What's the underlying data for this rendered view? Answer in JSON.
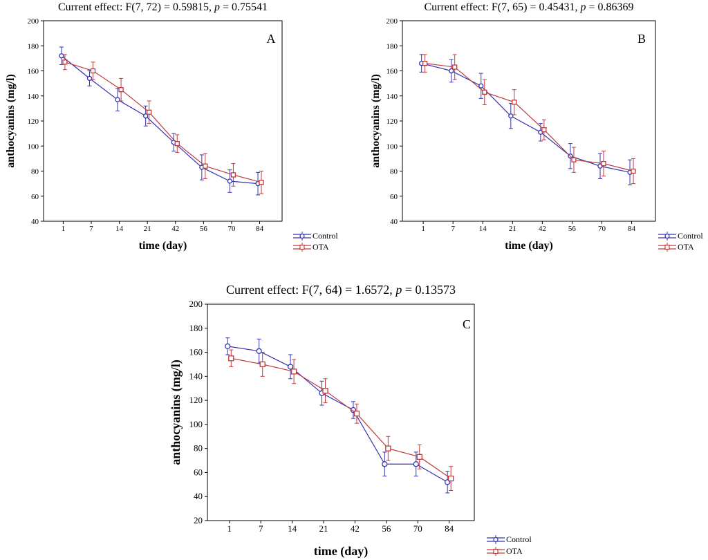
{
  "chart_data": [
    {
      "type": "line",
      "panel": "A",
      "title_prefix": "Current effect: F(7, 72) = 0.59815, ",
      "title_p": "p",
      "title_suffix": " = 0.75541",
      "xlabel": "time (day)",
      "ylabel": "anthocyanins (mg/l)",
      "categories": [
        "1",
        "7",
        "14",
        "21",
        "42",
        "56",
        "70",
        "84"
      ],
      "ylim": [
        40,
        200
      ],
      "yticks": [
        40,
        60,
        80,
        100,
        120,
        140,
        160,
        180,
        200
      ],
      "legend_position": "bottom-right",
      "series": [
        {
          "name": "Control",
          "color": "#3232b4",
          "marker": "circle",
          "values": [
            172,
            154,
            137,
            124,
            103,
            83,
            72,
            70
          ],
          "errors": [
            7,
            6,
            9,
            8,
            7,
            10,
            9,
            9
          ]
        },
        {
          "name": "OTA",
          "color": "#c0393b",
          "marker": "square",
          "values": [
            167,
            160,
            145,
            127,
            102,
            84,
            77,
            71
          ],
          "errors": [
            6,
            7,
            9,
            9,
            7,
            10,
            9,
            9
          ]
        }
      ]
    },
    {
      "type": "line",
      "panel": "B",
      "title_prefix": "Current effect: F(7, 65) = 0.45431, ",
      "title_p": "p",
      "title_suffix": " = 0.86369",
      "xlabel": "time (day)",
      "ylabel": "anthocyanins (mg/l)",
      "categories": [
        "1",
        "7",
        "14",
        "21",
        "42",
        "56",
        "70",
        "84"
      ],
      "ylim": [
        40,
        200
      ],
      "yticks": [
        40,
        60,
        80,
        100,
        120,
        140,
        160,
        180,
        200
      ],
      "legend_position": "bottom-right",
      "series": [
        {
          "name": "Control",
          "color": "#3232b4",
          "marker": "circle",
          "values": [
            166,
            160,
            148,
            124,
            111,
            92,
            84,
            79
          ],
          "errors": [
            7,
            9,
            10,
            10,
            7,
            10,
            10,
            10
          ]
        },
        {
          "name": "OTA",
          "color": "#c0393b",
          "marker": "square",
          "values": [
            166,
            163,
            143,
            135,
            113,
            89,
            86,
            80
          ],
          "errors": [
            7,
            10,
            10,
            10,
            8,
            10,
            10,
            10
          ]
        }
      ]
    },
    {
      "type": "line",
      "panel": "C",
      "title_prefix": "Current effect: F(7, 64) = 1.6572, ",
      "title_p": "p",
      "title_suffix": " = 0.13573",
      "xlabel": "time (day)",
      "ylabel": "anthocyanins (mg/l)",
      "categories": [
        "1",
        "7",
        "14",
        "21",
        "42",
        "56",
        "70",
        "84"
      ],
      "ylim": [
        20,
        200
      ],
      "yticks": [
        20,
        40,
        60,
        80,
        100,
        120,
        140,
        160,
        180,
        200
      ],
      "legend_position": "bottom-right",
      "series": [
        {
          "name": "Control",
          "color": "#3232b4",
          "marker": "circle",
          "values": [
            165,
            161,
            148,
            126,
            112,
            67,
            67,
            52
          ],
          "errors": [
            7,
            10,
            10,
            10,
            7,
            10,
            10,
            9
          ]
        },
        {
          "name": "OTA",
          "color": "#c0393b",
          "marker": "square",
          "values": [
            155,
            150,
            144,
            128,
            109,
            80,
            73,
            55
          ],
          "errors": [
            7,
            10,
            10,
            10,
            8,
            10,
            10,
            10
          ]
        }
      ]
    }
  ]
}
